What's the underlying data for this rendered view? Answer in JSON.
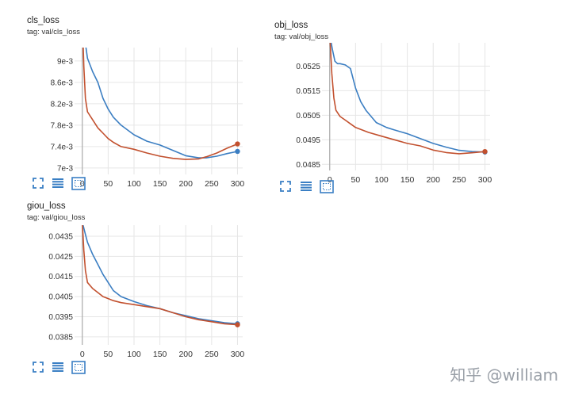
{
  "colors": {
    "series_blue": "#3b7ec2",
    "series_orange": "#c2502e",
    "tool_blue": "#3a7fc4"
  },
  "toolbar": {
    "icons": [
      "expand-icon",
      "data-lines-icon",
      "fit-domain-icon"
    ]
  },
  "watermark": "知乎 @william",
  "chart_data": [
    {
      "type": "line",
      "title": "cls_loss",
      "tag": "tag: val/cls_loss",
      "xlim": [
        -15,
        310
      ],
      "ylim": [
        0.00688,
        0.00925
      ],
      "x_ticks": [
        0,
        50,
        100,
        150,
        200,
        250,
        300
      ],
      "y_ticks": [
        {
          "v": 0.007,
          "label": "7e-3"
        },
        {
          "v": 0.0074,
          "label": "7.4e-3"
        },
        {
          "v": 0.0078,
          "label": "7.8e-3"
        },
        {
          "v": 0.0082,
          "label": "8.2e-3"
        },
        {
          "v": 0.0086,
          "label": "8.6e-3"
        },
        {
          "v": 0.009,
          "label": "9e-3"
        }
      ],
      "series": [
        {
          "color": "#3b7ec2",
          "x": [
            0,
            5,
            10,
            20,
            30,
            40,
            50,
            60,
            75,
            100,
            125,
            150,
            175,
            200,
            225,
            240,
            260,
            280,
            300
          ],
          "y": [
            0.0098,
            0.0094,
            0.00905,
            0.0088,
            0.0086,
            0.0083,
            0.0081,
            0.00795,
            0.0078,
            0.00762,
            0.0075,
            0.00743,
            0.00733,
            0.00723,
            0.00719,
            0.00719,
            0.00722,
            0.00727,
            0.00731
          ]
        },
        {
          "color": "#c2502e",
          "x": [
            0,
            3,
            6,
            10,
            20,
            30,
            40,
            50,
            60,
            75,
            100,
            125,
            150,
            175,
            200,
            225,
            240,
            260,
            280,
            300
          ],
          "y": [
            0.0098,
            0.0089,
            0.0083,
            0.00805,
            0.0079,
            0.00775,
            0.00765,
            0.00755,
            0.00748,
            0.0074,
            0.00735,
            0.00728,
            0.00722,
            0.00718,
            0.00716,
            0.00717,
            0.00721,
            0.00728,
            0.00737,
            0.00745
          ]
        }
      ]
    },
    {
      "type": "line",
      "title": "obj_loss",
      "tag": "tag: val/obj_loss",
      "xlim": [
        -15,
        310
      ],
      "ylim": [
        0.04825,
        0.05345
      ],
      "x_ticks": [
        0,
        50,
        100,
        150,
        200,
        250,
        300
      ],
      "y_ticks": [
        {
          "v": 0.0485,
          "label": "0.0485"
        },
        {
          "v": 0.0495,
          "label": "0.0495"
        },
        {
          "v": 0.0505,
          "label": "0.0505"
        },
        {
          "v": 0.0515,
          "label": "0.0515"
        },
        {
          "v": 0.0525,
          "label": "0.0525"
        }
      ],
      "series": [
        {
          "color": "#3b7ec2",
          "x": [
            0,
            5,
            10,
            15,
            20,
            30,
            40,
            50,
            60,
            70,
            90,
            110,
            125,
            150,
            175,
            200,
            225,
            250,
            275,
            300
          ],
          "y": [
            0.0538,
            0.0532,
            0.0527,
            0.0526,
            0.0526,
            0.05255,
            0.0524,
            0.0516,
            0.05105,
            0.0507,
            0.0502,
            0.05,
            0.0499,
            0.04975,
            0.04955,
            0.04935,
            0.0492,
            0.04907,
            0.04902,
            0.049
          ]
        },
        {
          "color": "#c2502e",
          "x": [
            0,
            4,
            8,
            12,
            20,
            30,
            40,
            50,
            75,
            100,
            125,
            150,
            175,
            200,
            225,
            250,
            275,
            300
          ],
          "y": [
            0.0538,
            0.0522,
            0.0512,
            0.0507,
            0.05045,
            0.0503,
            0.05015,
            0.05,
            0.0498,
            0.04965,
            0.0495,
            0.04935,
            0.04925,
            0.04908,
            0.04898,
            0.04893,
            0.04897,
            0.04902
          ]
        }
      ]
    },
    {
      "type": "line",
      "title": "giou_loss",
      "tag": "tag: val/giou_loss",
      "xlim": [
        -15,
        310
      ],
      "ylim": [
        0.0381,
        0.04405
      ],
      "x_ticks": [
        0,
        50,
        100,
        150,
        200,
        250,
        300
      ],
      "y_ticks": [
        {
          "v": 0.0385,
          "label": "0.0385"
        },
        {
          "v": 0.0395,
          "label": "0.0395"
        },
        {
          "v": 0.0405,
          "label": "0.0405"
        },
        {
          "v": 0.0415,
          "label": "0.0415"
        },
        {
          "v": 0.0425,
          "label": "0.0425"
        },
        {
          "v": 0.0435,
          "label": "0.0435"
        }
      ],
      "series": [
        {
          "color": "#3b7ec2",
          "x": [
            0,
            5,
            10,
            20,
            30,
            40,
            50,
            60,
            75,
            100,
            125,
            150,
            175,
            200,
            225,
            250,
            275,
            300
          ],
          "y": [
            0.0442,
            0.0437,
            0.0432,
            0.0426,
            0.0421,
            0.0416,
            0.0412,
            0.0408,
            0.0405,
            0.04025,
            0.04005,
            0.0399,
            0.0397,
            0.03955,
            0.0394,
            0.0393,
            0.0392,
            0.03915
          ]
        },
        {
          "color": "#c2502e",
          "x": [
            0,
            3,
            6,
            10,
            20,
            30,
            40,
            50,
            60,
            75,
            100,
            125,
            150,
            175,
            200,
            225,
            250,
            275,
            300
          ],
          "y": [
            0.0442,
            0.0428,
            0.0418,
            0.0412,
            0.0409,
            0.0407,
            0.0405,
            0.0404,
            0.0403,
            0.0402,
            0.0401,
            0.04,
            0.0399,
            0.0397,
            0.0395,
            0.03935,
            0.03925,
            0.03915,
            0.0391
          ]
        }
      ]
    }
  ]
}
